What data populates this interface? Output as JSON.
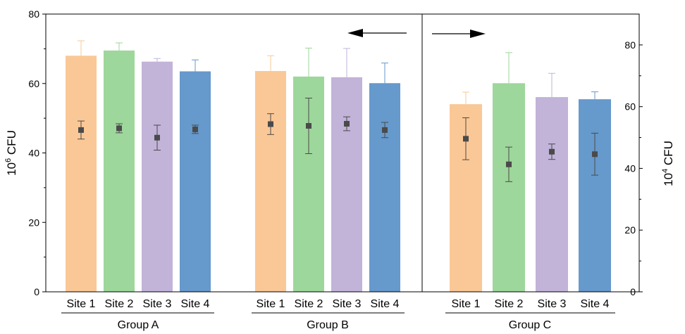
{
  "colors": {
    "site1": "#FAC896",
    "site2": "#9DD79B",
    "site3": "#C2B3D9",
    "site4": "#6699CC",
    "marker": "#4A4A4A",
    "axis": "#000000"
  },
  "axes": {
    "left": {
      "title_main": "10",
      "title_sup": "6",
      "title_unit": " CFU",
      "ylim": [
        0,
        80
      ],
      "ticks": [
        0,
        20,
        40,
        60,
        80
      ],
      "tick_labels": [
        "0",
        "20",
        "40",
        "60",
        "80"
      ]
    },
    "right": {
      "title_main": "10",
      "title_sup": "4",
      "title_unit": " CFU",
      "ylim": [
        0,
        90
      ],
      "ticks": [
        0,
        20,
        40,
        60,
        80
      ],
      "tick_labels": [
        "0",
        "20",
        "40",
        "60",
        "80"
      ]
    }
  },
  "chart_data": {
    "type": "bar",
    "groups": [
      {
        "name": "Group A",
        "axis": "left",
        "categories": [
          "Site 1",
          "Site 2",
          "Site 3",
          "Site 4"
        ],
        "bar_values": [
          68,
          69.5,
          66.3,
          63.5
        ],
        "bar_errors": [
          4.3,
          2.2,
          0.9,
          3.3
        ],
        "point_values": [
          46.6,
          47.1,
          44.4,
          46.8
        ],
        "point_errors": [
          2.6,
          1.3,
          3.6,
          1.2
        ]
      },
      {
        "name": "Group B",
        "axis": "left",
        "categories": [
          "Site 1",
          "Site 2",
          "Site 3",
          "Site 4"
        ],
        "bar_values": [
          63.6,
          62,
          61.8,
          60.1
        ],
        "bar_errors": [
          4.4,
          8.2,
          8.3,
          5.8
        ],
        "point_values": [
          48.3,
          47.8,
          48.4,
          46.6
        ],
        "point_errors": [
          3.0,
          8.0,
          2.0,
          2.2
        ]
      },
      {
        "name": "Group C",
        "axis": "right",
        "categories": [
          "Site 1",
          "Site 2",
          "Site 3",
          "Site 4"
        ],
        "bar_values": [
          60.8,
          67.6,
          63.1,
          62.4
        ],
        "bar_errors": [
          3.9,
          9.9,
          7.7,
          2.4
        ],
        "point_values": [
          49.6,
          41.3,
          45.4,
          44.6
        ],
        "point_errors": [
          6.8,
          5.6,
          2.5,
          6.8
        ]
      }
    ],
    "arrows": [
      "left",
      "right"
    ],
    "grid": false
  }
}
